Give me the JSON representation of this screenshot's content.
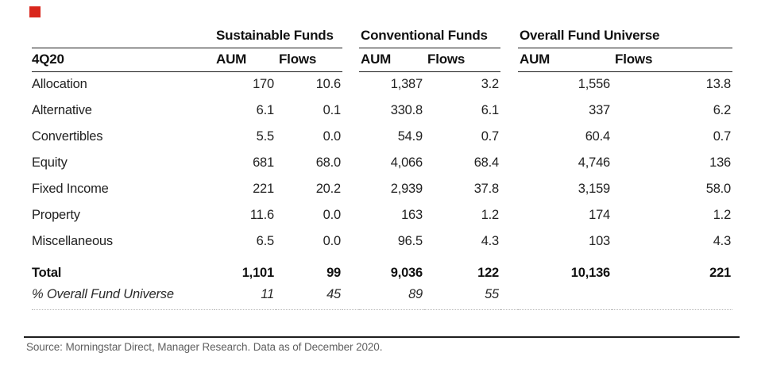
{
  "exhibit_marker_color": "#d9261c",
  "header": {
    "period": "4Q20",
    "groups": [
      {
        "label": "Sustainable Funds"
      },
      {
        "label": "Conventional Funds"
      },
      {
        "label": "Overall Fund Universe"
      }
    ],
    "aum_label": "AUM",
    "flows_label": "Flows"
  },
  "rows": [
    {
      "label": "Allocation",
      "values": [
        "170",
        "10.6",
        "1,387",
        "3.2",
        "1,556",
        "13.8"
      ]
    },
    {
      "label": "Alternative",
      "values": [
        "6.1",
        "0.1",
        "330.8",
        "6.1",
        "337",
        "6.2"
      ]
    },
    {
      "label": "Convertibles",
      "values": [
        "5.5",
        "0.0",
        "54.9",
        "0.7",
        "60.4",
        "0.7"
      ]
    },
    {
      "label": "Equity",
      "values": [
        "681",
        "68.0",
        "4,066",
        "68.4",
        "4,746",
        "136"
      ]
    },
    {
      "label": "Fixed Income",
      "values": [
        "221",
        "20.2",
        "2,939",
        "37.8",
        "3,159",
        "58.0"
      ]
    },
    {
      "label": "Property",
      "values": [
        "11.6",
        "0.0",
        "163",
        "1.2",
        "174",
        "1.2"
      ]
    },
    {
      "label": "Miscellaneous",
      "values": [
        "6.5",
        "0.0",
        "96.5",
        "4.3",
        "103",
        "4.3"
      ]
    }
  ],
  "total_row": {
    "label": "Total",
    "values": [
      "1,101",
      "99",
      "9,036",
      "122",
      "10,136",
      "221"
    ]
  },
  "percent_row": {
    "label": "% Overall Fund Universe",
    "values": [
      "11",
      "45",
      "89",
      "55",
      "",
      ""
    ]
  },
  "footer": {
    "source": "Source: Morningstar Direct, Manager Research. Data as of December 2020."
  }
}
